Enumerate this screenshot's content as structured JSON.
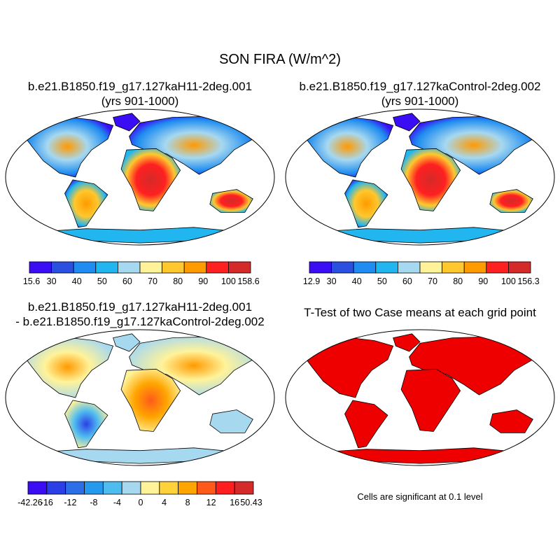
{
  "title": "SON FIRA (W/m^2)",
  "chart_data": [
    {
      "type": "heatmap",
      "title_line1": "b.e21.B1850.f19_g17.127kaH11-2deg.001",
      "title_line2": "(yrs 901-1000)",
      "colorbar": {
        "min_label": "15.6",
        "max_label": "158.6",
        "ticks": [
          "30",
          "40",
          "50",
          "60",
          "70",
          "80",
          "90",
          "100"
        ],
        "colors": [
          "#3a0df5",
          "#2b50e0",
          "#1e8cf0",
          "#22b6f0",
          "#a6d8f0",
          "#fff39a",
          "#ffc82e",
          "#ff9a00",
          "#ff2020",
          "#d42a2a"
        ]
      }
    },
    {
      "type": "heatmap",
      "title_line1": "b.e21.B1850.f19_g17.127kaControl-2deg.002",
      "title_line2": "(yrs 901-1000)",
      "colorbar": {
        "min_label": "12.9",
        "max_label": "156.3",
        "ticks": [
          "30",
          "40",
          "50",
          "60",
          "70",
          "80",
          "90",
          "100"
        ],
        "colors": [
          "#3a0df5",
          "#2b50e0",
          "#1e8cf0",
          "#22b6f0",
          "#a6d8f0",
          "#fff39a",
          "#ffc82e",
          "#ff9a00",
          "#ff2020",
          "#d42a2a"
        ]
      }
    },
    {
      "type": "heatmap",
      "title_line1": "b.e21.B1850.f19_g17.127kaH11-2deg.001",
      "title_line2": "- b.e21.B1850.f19_g17.127kaControl-2deg.002",
      "colorbar": {
        "min_label": "-42.26",
        "max_label": "50.43",
        "ticks": [
          "-16",
          "-12",
          "-8",
          "-4",
          "0",
          "4",
          "8",
          "12",
          "16"
        ],
        "colors": [
          "#3a0df5",
          "#2b3fe6",
          "#2b6ee8",
          "#2499ee",
          "#4fbcf0",
          "#a6d8f0",
          "#fff39a",
          "#ffd23a",
          "#ffa500",
          "#ff5a1a",
          "#ff1f1f",
          "#d42a2a"
        ]
      }
    },
    {
      "type": "heatmap",
      "title": "T-Test of two Case means at each grid point",
      "note": "Cells are significant at 0.1 level",
      "colors": [
        "#ee0000"
      ]
    }
  ]
}
